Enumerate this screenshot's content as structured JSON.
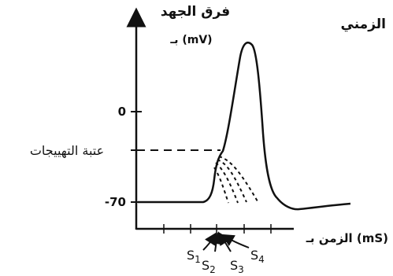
{
  "labels": {
    "y_axis_title": "فرق الجهد",
    "y_axis_unit": "بـ (mV)",
    "x_axis_title": "الزمن بـ (mS)",
    "corner_title": "الزمني",
    "threshold": "عتبة التهييجات"
  },
  "ticks": {
    "zero": "0",
    "rest": "-70"
  },
  "stimuli": [
    {
      "letter": "S",
      "index": "1"
    },
    {
      "letter": "S",
      "index": "2"
    },
    {
      "letter": "S",
      "index": "3"
    },
    {
      "letter": "S",
      "index": "4"
    }
  ],
  "colors": {
    "ink": "#111111",
    "background": "#ffffff"
  }
}
